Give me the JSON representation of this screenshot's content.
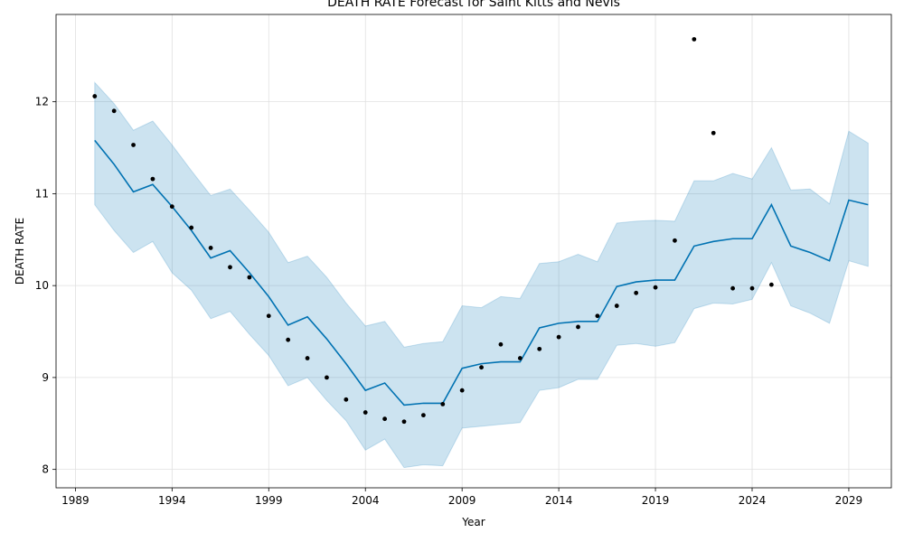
{
  "chart_data": {
    "type": "line",
    "title": "DEATH RATE Forecast for Saint Kitts and Nevis",
    "xlabel": "Year",
    "ylabel": "DEATH RATE",
    "xlim": [
      1988.0,
      2031.2
    ],
    "ylim": [
      7.8,
      12.95
    ],
    "x_ticks": [
      1989,
      1994,
      1999,
      2004,
      2009,
      2014,
      2019,
      2024,
      2029
    ],
    "y_ticks": [
      8,
      9,
      10,
      11,
      12
    ],
    "grid": true,
    "colors": {
      "forecast": "#0072B2",
      "band": "#0072B2",
      "points": "#000000",
      "grid": "#e0e0e0"
    },
    "observed": {
      "x": [
        1990,
        1991,
        1992,
        1993,
        1994,
        1995,
        1996,
        1997,
        1998,
        1999,
        2000,
        2001,
        2002,
        2003,
        2004,
        2005,
        2006,
        2007,
        2008,
        2009,
        2010,
        2011,
        2012,
        2013,
        2014,
        2015,
        2016,
        2017,
        2018,
        2019,
        2020,
        2021,
        2022,
        2023,
        2024,
        2025
      ],
      "y": [
        12.06,
        11.9,
        11.53,
        11.16,
        10.86,
        10.63,
        10.41,
        10.2,
        10.09,
        9.67,
        9.41,
        9.21,
        9.0,
        8.76,
        8.62,
        8.55,
        8.52,
        8.59,
        8.71,
        8.86,
        9.11,
        9.36,
        9.21,
        9.31,
        9.44,
        9.55,
        9.67,
        9.78,
        9.92,
        9.98,
        10.49,
        12.68,
        11.66,
        9.97,
        9.97,
        10.01
      ]
    },
    "forecast": {
      "x": [
        1990,
        1991,
        1992,
        1993,
        1994,
        1995,
        1996,
        1997,
        1998,
        1999,
        2000,
        2001,
        2002,
        2003,
        2004,
        2005,
        2006,
        2007,
        2008,
        2009,
        2010,
        2011,
        2012,
        2013,
        2014,
        2015,
        2016,
        2017,
        2018,
        2019,
        2020,
        2021,
        2022,
        2023,
        2024,
        2025,
        2026,
        2027,
        2028,
        2029,
        2030
      ],
      "yhat": [
        11.58,
        11.32,
        11.02,
        11.1,
        10.86,
        10.6,
        10.3,
        10.38,
        10.14,
        9.88,
        9.57,
        9.66,
        9.42,
        9.15,
        8.86,
        8.94,
        8.7,
        8.72,
        8.72,
        9.1,
        9.15,
        9.17,
        9.17,
        9.54,
        9.59,
        9.61,
        9.61,
        9.99,
        10.04,
        10.06,
        10.06,
        10.43,
        10.48,
        10.51,
        10.51,
        10.88,
        10.43,
        10.36,
        10.27,
        10.93,
        10.88
      ],
      "lower": [
        10.88,
        10.6,
        10.36,
        10.48,
        10.14,
        9.95,
        9.64,
        9.72,
        9.47,
        9.24,
        8.91,
        9.0,
        8.75,
        8.53,
        8.21,
        8.33,
        8.02,
        8.05,
        8.04,
        8.45,
        8.47,
        8.49,
        8.51,
        8.86,
        8.89,
        8.98,
        8.98,
        9.35,
        9.37,
        9.34,
        9.38,
        9.75,
        9.81,
        9.8,
        9.85,
        10.25,
        9.78,
        9.7,
        9.59,
        10.27,
        10.21
      ],
      "upper": [
        12.21,
        11.98,
        11.69,
        11.79,
        11.53,
        11.25,
        10.98,
        11.05,
        10.82,
        10.58,
        10.25,
        10.32,
        10.09,
        9.81,
        9.56,
        9.61,
        9.33,
        9.37,
        9.39,
        9.78,
        9.76,
        9.88,
        9.86,
        10.24,
        10.26,
        10.34,
        10.26,
        10.68,
        10.7,
        10.71,
        10.7,
        11.14,
        11.14,
        11.22,
        11.16,
        11.5,
        11.04,
        11.05,
        10.89,
        11.68,
        11.55
      ]
    }
  }
}
